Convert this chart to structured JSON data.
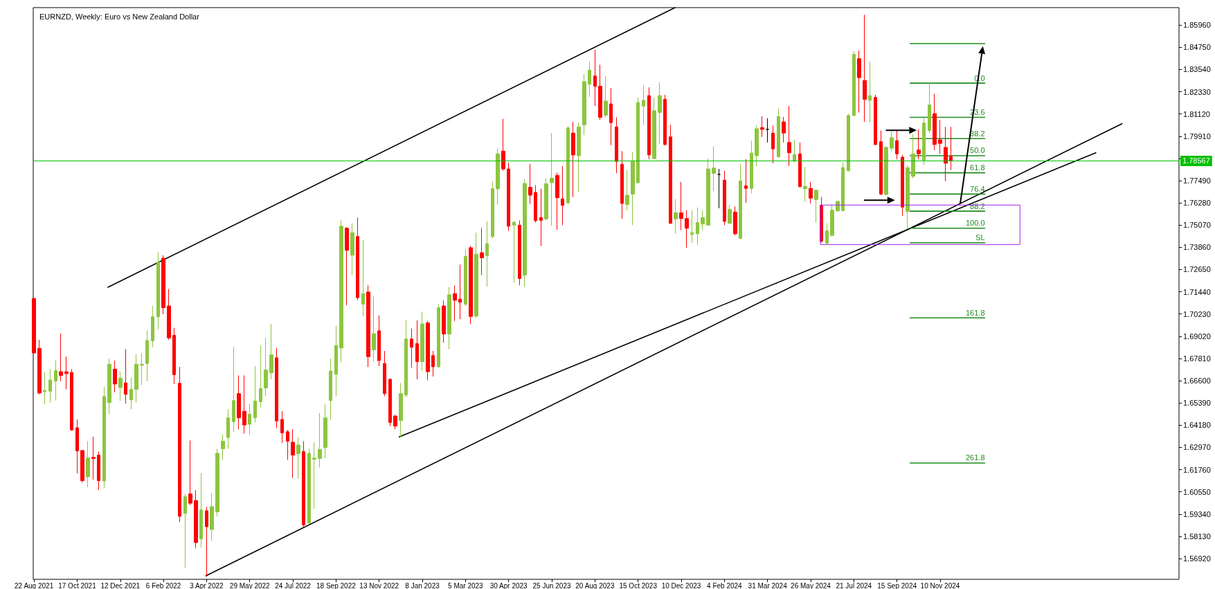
{
  "chart_data": {
    "type": "candlestick",
    "title": "EURNZD, Weekly: Euro vs New Zealand Dollar",
    "marker": "none",
    "line_style": "solid",
    "x": [
      "2021-08-22",
      "2021-08-29",
      "2021-09-05",
      "2021-09-12",
      "2021-09-19",
      "2021-09-26",
      "2021-10-03",
      "2021-10-10",
      "2021-10-17",
      "2021-10-24",
      "2021-10-31",
      "2021-11-07",
      "2021-11-14",
      "2021-11-21",
      "2021-11-28",
      "2021-12-05",
      "2021-12-12",
      "2021-12-19",
      "2021-12-26",
      "2022-01-02",
      "2022-01-09",
      "2022-01-16",
      "2022-01-23",
      "2022-01-30",
      "2022-02-06",
      "2022-02-13",
      "2022-02-20",
      "2022-02-27",
      "2022-03-06",
      "2022-03-13",
      "2022-03-20",
      "2022-03-27",
      "2022-04-03",
      "2022-04-10",
      "2022-04-17",
      "2022-04-24",
      "2022-05-01",
      "2022-05-08",
      "2022-05-15",
      "2022-05-22",
      "2022-05-29",
      "2022-06-05",
      "2022-06-12",
      "2022-06-19",
      "2022-06-26",
      "2022-07-03",
      "2022-07-10",
      "2022-07-17",
      "2022-07-24",
      "2022-07-31",
      "2022-08-07",
      "2022-08-14",
      "2022-08-21",
      "2022-08-28",
      "2022-09-04",
      "2022-09-11",
      "2022-09-18",
      "2022-09-25",
      "2022-10-02",
      "2022-10-09",
      "2022-10-16",
      "2022-10-23",
      "2022-10-30",
      "2022-11-06",
      "2022-11-13",
      "2022-11-20",
      "2022-11-27",
      "2022-12-04",
      "2022-12-11",
      "2022-12-18",
      "2022-12-25",
      "2023-01-01",
      "2023-01-08",
      "2023-01-15",
      "2023-01-22",
      "2023-01-29",
      "2023-02-05",
      "2023-02-12",
      "2023-02-19",
      "2023-02-26",
      "2023-03-05",
      "2023-03-12",
      "2023-03-19",
      "2023-03-26",
      "2023-04-02",
      "2023-04-09",
      "2023-04-16",
      "2023-04-23",
      "2023-04-30",
      "2023-05-07",
      "2023-05-14",
      "2023-05-21",
      "2023-05-28",
      "2023-06-04",
      "2023-06-11",
      "2023-06-18",
      "2023-06-25",
      "2023-07-02",
      "2023-07-09",
      "2023-07-16",
      "2023-07-23",
      "2023-07-30",
      "2023-08-06",
      "2023-08-13",
      "2023-08-20",
      "2023-08-27",
      "2023-09-03",
      "2023-09-10",
      "2023-09-17",
      "2023-09-24",
      "2023-10-01",
      "2023-10-08",
      "2023-10-15",
      "2023-10-22",
      "2023-10-29",
      "2023-11-05",
      "2023-11-12",
      "2023-11-19",
      "2023-11-26",
      "2023-12-03",
      "2023-12-10",
      "2023-12-17",
      "2023-12-24",
      "2023-12-31",
      "2024-01-07",
      "2024-01-14",
      "2024-01-21",
      "2024-01-28",
      "2024-02-04",
      "2024-02-11",
      "2024-02-18",
      "2024-02-25",
      "2024-03-03",
      "2024-03-10",
      "2024-03-17",
      "2024-03-24",
      "2024-03-31",
      "2024-04-07",
      "2024-04-14",
      "2024-04-21",
      "2024-04-28",
      "2024-05-05",
      "2024-05-12",
      "2024-05-19",
      "2024-05-26",
      "2024-06-02",
      "2024-06-09",
      "2024-06-16",
      "2024-06-23",
      "2024-06-30",
      "2024-07-07",
      "2024-07-14",
      "2024-07-21",
      "2024-07-28",
      "2024-08-04",
      "2024-08-11",
      "2024-08-18",
      "2024-08-25",
      "2024-09-01",
      "2024-09-08",
      "2024-09-15",
      "2024-09-22",
      "2024-09-29",
      "2024-10-06",
      "2024-10-13",
      "2024-10-20",
      "2024-10-27",
      "2024-11-03",
      "2024-11-10",
      "2024-11-17",
      "2024-11-24"
    ],
    "ohlc": [
      [
        1.7108,
        1.7112,
        1.6807,
        1.6811
      ],
      [
        1.6836,
        1.6883,
        1.6586,
        1.6593
      ],
      [
        1.6601,
        1.6709,
        1.6531,
        1.6607
      ],
      [
        1.6603,
        1.6723,
        1.6541,
        1.6664
      ],
      [
        1.6658,
        1.677,
        1.6552,
        1.6715
      ],
      [
        1.6709,
        1.6918,
        1.6658,
        1.6689
      ],
      [
        1.6709,
        1.6791,
        1.6613,
        1.6699
      ],
      [
        1.6705,
        1.6723,
        1.6388,
        1.6392
      ],
      [
        1.6404,
        1.6449,
        1.6155,
        1.6278
      ],
      [
        1.628,
        1.6284,
        1.6106,
        1.6116
      ],
      [
        1.6137,
        1.6331,
        1.6081,
        1.6239
      ],
      [
        1.6243,
        1.6355,
        1.6122,
        1.6237
      ],
      [
        1.6255,
        1.6274,
        1.6065,
        1.6116
      ],
      [
        1.6114,
        1.6627,
        1.6075,
        1.6574
      ],
      [
        1.6541,
        1.6781,
        1.6478,
        1.675
      ],
      [
        1.6723,
        1.677,
        1.6597,
        1.6642
      ],
      [
        1.6623,
        1.6709,
        1.655,
        1.6674
      ],
      [
        1.6648,
        1.6832,
        1.6535,
        1.6586
      ],
      [
        1.6556,
        1.6678,
        1.6505,
        1.6613
      ],
      [
        1.6613,
        1.6805,
        1.6541,
        1.675
      ],
      [
        1.6744,
        1.6811,
        1.6638,
        1.675
      ],
      [
        1.6754,
        1.6934,
        1.6658,
        1.6879
      ],
      [
        1.6877,
        1.7067,
        1.6842,
        1.7008
      ],
      [
        1.7008,
        1.7359,
        1.694,
        1.7306
      ],
      [
        1.7327,
        1.7343,
        1.7022,
        1.7057
      ],
      [
        1.7067,
        1.7159,
        1.6883,
        1.6893
      ],
      [
        1.6907,
        1.6948,
        1.6642,
        1.6693
      ],
      [
        1.6646,
        1.6736,
        1.5891,
        1.5922
      ],
      [
        1.5938,
        1.6044,
        1.5642,
        1.6028
      ],
      [
        1.6044,
        1.6335,
        1.5983,
        1.5993
      ],
      [
        1.6008,
        1.6065,
        1.5748,
        1.5779
      ],
      [
        1.5799,
        1.6157,
        1.5752,
        1.5957
      ],
      [
        1.5952,
        1.5973,
        1.5595,
        1.5865
      ],
      [
        1.585,
        1.6049,
        1.5789,
        1.5975
      ],
      [
        1.5946,
        1.629,
        1.5922,
        1.6265
      ],
      [
        1.629,
        1.6368,
        1.6229,
        1.6331
      ],
      [
        1.6351,
        1.6505,
        1.629,
        1.6458
      ],
      [
        1.6437,
        1.6846,
        1.6382,
        1.6552
      ],
      [
        1.659,
        1.6689,
        1.6396,
        1.6458
      ],
      [
        1.6494,
        1.6689,
        1.6372,
        1.6419
      ],
      [
        1.6423,
        1.6535,
        1.6366,
        1.6478
      ],
      [
        1.6458,
        1.674,
        1.6433,
        1.655
      ],
      [
        1.6546,
        1.6852,
        1.6515,
        1.6617
      ],
      [
        1.6621,
        1.6893,
        1.6576,
        1.6719
      ],
      [
        1.6703,
        1.6969,
        1.6668,
        1.6801
      ],
      [
        1.6785,
        1.6838,
        1.6402,
        1.6441
      ],
      [
        1.6449,
        1.6494,
        1.6321,
        1.6376
      ],
      [
        1.6382,
        1.6392,
        1.6229,
        1.6331
      ],
      [
        1.6325,
        1.6396,
        1.613,
        1.6255
      ],
      [
        1.6263,
        1.6351,
        1.6126,
        1.631
      ],
      [
        1.6274,
        1.6331,
        1.586,
        1.5875
      ],
      [
        1.5885,
        1.629,
        1.5881,
        1.6265
      ],
      [
        1.6233,
        1.6325,
        1.5963,
        1.6239
      ],
      [
        1.6237,
        1.6484,
        1.6188,
        1.6286
      ],
      [
        1.6296,
        1.6531,
        1.6239,
        1.6458
      ],
      [
        1.6552,
        1.6781,
        1.6447,
        1.6713
      ],
      [
        1.6695,
        1.6959,
        1.6576,
        1.6852
      ],
      [
        1.6838,
        1.7533,
        1.676,
        1.7501
      ],
      [
        1.749,
        1.7496,
        1.7071,
        1.737
      ],
      [
        1.7343,
        1.7517,
        1.7235,
        1.7466
      ],
      [
        1.7445,
        1.7548,
        1.7098,
        1.7112
      ],
      [
        1.7077,
        1.7425,
        1.701,
        1.7134
      ],
      [
        1.7143,
        1.7179,
        1.6734,
        1.6791
      ],
      [
        1.6828,
        1.7118,
        1.6764,
        1.6916
      ],
      [
        1.6932,
        1.7016,
        1.674,
        1.677
      ],
      [
        1.6754,
        1.6822,
        1.6576,
        1.659
      ],
      [
        1.6668,
        1.6672,
        1.6413,
        1.6433
      ],
      [
        1.6468,
        1.6474,
        1.6396,
        1.6413
      ],
      [
        1.6443,
        1.6648,
        1.6351,
        1.659
      ],
      [
        1.6582,
        1.6989,
        1.657,
        1.6887
      ],
      [
        1.6887,
        1.6944,
        1.673,
        1.6842
      ],
      [
        1.6862,
        1.6989,
        1.6668,
        1.6764
      ],
      [
        1.6764,
        1.7036,
        1.6715,
        1.6969
      ],
      [
        1.6975,
        1.6985,
        1.6662,
        1.6709
      ],
      [
        1.6797,
        1.6822,
        1.6683,
        1.6736
      ],
      [
        1.6736,
        1.7077,
        1.673,
        1.7057
      ],
      [
        1.7067,
        1.7098,
        1.6867,
        1.6914
      ],
      [
        1.6914,
        1.7169,
        1.6832,
        1.7128
      ],
      [
        1.7134,
        1.7179,
        1.6985,
        1.7098
      ],
      [
        1.7104,
        1.7292,
        1.6995,
        1.7087
      ],
      [
        1.7077,
        1.7374,
        1.7067,
        1.7337
      ],
      [
        1.7384,
        1.7394,
        1.6969,
        1.701
      ],
      [
        1.7012,
        1.7466,
        1.7002,
        1.7349
      ],
      [
        1.7357,
        1.7492,
        1.7235,
        1.7329
      ],
      [
        1.7341,
        1.7527,
        1.7173,
        1.7406
      ],
      [
        1.7445,
        1.7746,
        1.7435,
        1.7705
      ],
      [
        1.7705,
        1.7926,
        1.7619,
        1.7895
      ],
      [
        1.791,
        1.8085,
        1.7803,
        1.7813
      ],
      [
        1.7813,
        1.7848,
        1.7476,
        1.7501
      ],
      [
        1.7507,
        1.7527,
        1.7194,
        1.7523
      ],
      [
        1.7507,
        1.7533,
        1.7179,
        1.7216
      ],
      [
        1.7235,
        1.7756,
        1.7169,
        1.7734
      ],
      [
        1.7713,
        1.784,
        1.7623,
        1.767
      ],
      [
        1.7685,
        1.7725,
        1.7521,
        1.7531
      ],
      [
        1.7548,
        1.7705,
        1.7394,
        1.7533
      ],
      [
        1.7541,
        1.7762,
        1.7533,
        1.7732
      ],
      [
        1.7738,
        1.8008,
        1.7503,
        1.7762
      ],
      [
        1.7777,
        1.7793,
        1.7482,
        1.7656
      ],
      [
        1.765,
        1.7828,
        1.7507,
        1.7615
      ],
      [
        1.7629,
        1.8045,
        1.7619,
        1.8036
      ],
      [
        1.8008,
        1.8069,
        1.766,
        1.7889
      ],
      [
        1.7885,
        1.8065,
        1.7687,
        1.8042
      ],
      [
        1.8053,
        1.8329,
        1.7997,
        1.8288
      ],
      [
        1.8274,
        1.8396,
        1.8206,
        1.8351
      ],
      [
        1.8319,
        1.8462,
        1.8155,
        1.8263
      ],
      [
        1.8263,
        1.838,
        1.8079,
        1.8094
      ],
      [
        1.8106,
        1.8319,
        1.8094,
        1.8182
      ],
      [
        1.8167,
        1.8253,
        1.7942,
        1.8065
      ],
      [
        1.8042,
        1.8094,
        1.7789,
        1.7854
      ],
      [
        1.7838,
        1.791,
        1.7541,
        1.7625
      ],
      [
        1.7619,
        1.7807,
        1.7588,
        1.767
      ],
      [
        1.7676,
        1.7905,
        1.7507,
        1.7854
      ],
      [
        1.7738,
        1.8202,
        1.7732,
        1.8175
      ],
      [
        1.8155,
        1.8267,
        1.8053,
        1.8186
      ],
      [
        1.8212,
        1.8257,
        1.7865,
        1.7889
      ],
      [
        1.7869,
        1.8202,
        1.7865,
        1.813
      ],
      [
        1.812,
        1.8284,
        1.795,
        1.8212
      ],
      [
        1.8192,
        1.8216,
        1.794,
        1.7946
      ],
      [
        1.7987,
        1.8053,
        1.7513,
        1.7517
      ],
      [
        1.7541,
        1.765,
        1.746,
        1.7574
      ],
      [
        1.7574,
        1.7742,
        1.748,
        1.7543
      ],
      [
        1.7543,
        1.7588,
        1.7384,
        1.749
      ],
      [
        1.7456,
        1.7588,
        1.7409,
        1.7466
      ],
      [
        1.746,
        1.7603,
        1.7398,
        1.7521
      ],
      [
        1.7513,
        1.7588,
        1.748,
        1.7548
      ],
      [
        1.7507,
        1.7869,
        1.7505,
        1.7813
      ],
      [
        1.7789,
        1.7936,
        1.7691,
        1.7818
      ],
      [
        1.7783,
        1.7813,
        1.7599,
        1.7783
      ],
      [
        1.7752,
        1.7803,
        1.7507,
        1.7527
      ],
      [
        1.7517,
        1.7619,
        1.7513,
        1.7593
      ],
      [
        1.7578,
        1.7609,
        1.7451,
        1.746
      ],
      [
        1.7435,
        1.784,
        1.7431,
        1.7748
      ],
      [
        1.7721,
        1.7865,
        1.7629,
        1.7707
      ],
      [
        1.7707,
        1.7967,
        1.768,
        1.7899
      ],
      [
        1.7885,
        1.8049,
        1.7828,
        1.8032
      ],
      [
        1.8038,
        1.81,
        1.7987,
        1.8028
      ],
      [
        1.8028,
        1.8089,
        1.7957,
        1.8028
      ],
      [
        1.8008,
        1.8049,
        1.7844,
        1.7922
      ],
      [
        1.7879,
        1.8141,
        1.7875,
        1.8098
      ],
      [
        1.8069,
        1.8096,
        1.7957,
        1.8008
      ],
      [
        1.7957,
        1.8155,
        1.7828,
        1.7901
      ],
      [
        1.7858,
        1.7971,
        1.7848,
        1.7891
      ],
      [
        1.7895,
        1.7957,
        1.7711,
        1.7717
      ],
      [
        1.7705,
        1.7824,
        1.7636,
        1.7717
      ],
      [
        1.7707,
        1.7742,
        1.7625,
        1.7654
      ],
      [
        1.7646,
        1.7701,
        1.7521,
        1.7697
      ],
      [
        1.7615,
        1.766,
        1.7411,
        1.7419
      ],
      [
        1.7409,
        1.7517,
        1.7404,
        1.7476
      ],
      [
        1.7451,
        1.7619,
        1.7445,
        1.7588
      ],
      [
        1.7584,
        1.764,
        1.7582,
        1.7636
      ],
      [
        1.7586,
        1.7848,
        1.7582,
        1.782
      ],
      [
        1.7803,
        1.8114,
        1.7799,
        1.8104
      ],
      [
        1.8104,
        1.8454,
        1.81,
        1.8437
      ],
      [
        1.8413,
        1.8458,
        1.812,
        1.831
      ],
      [
        1.8294,
        1.8652,
        1.8069,
        1.8192
      ],
      [
        1.8186,
        1.8396,
        1.8065,
        1.8212
      ],
      [
        1.8202,
        1.8216,
        1.7942,
        1.7946
      ],
      [
        1.7961,
        1.8022,
        1.767,
        1.7676
      ],
      [
        1.7674,
        1.7936,
        1.767,
        1.793
      ],
      [
        1.7926,
        1.8018,
        1.791,
        1.7983
      ],
      [
        1.7967,
        1.8024,
        1.7865,
        1.7895
      ],
      [
        1.7877,
        1.7889,
        1.7558,
        1.7605
      ],
      [
        1.7582,
        1.7834,
        1.7486,
        1.782
      ],
      [
        1.7773,
        1.8002,
        1.7762,
        1.7895
      ],
      [
        1.7916,
        1.8028,
        1.7865,
        1.7895
      ],
      [
        1.7861,
        1.8089,
        1.7834,
        1.8063
      ],
      [
        1.8022,
        1.828,
        1.8008,
        1.8161
      ],
      [
        1.8114,
        1.8222,
        1.7916,
        1.7946
      ],
      [
        1.7971,
        1.8079,
        1.7895,
        1.7952
      ],
      [
        1.793,
        1.8042,
        1.7746,
        1.7844
      ],
      [
        1.7881,
        1.8042,
        1.7807,
        1.7857
      ]
    ],
    "colors": [
      "#ff0000",
      "#ff0000",
      "#8cc63f",
      "#8cc63f",
      "#8cc63f",
      "#ff0000",
      "#ff0000",
      "#ff0000",
      "#ff0000",
      "#ff0000",
      "#8cc63f",
      "#ff0000",
      "#ff0000",
      "#8cc63f",
      "#8cc63f",
      "#ff0000",
      "#8cc63f",
      "#ff0000",
      "#8cc63f",
      "#8cc63f",
      "#8cc63f",
      "#8cc63f",
      "#8cc63f",
      "#8cc63f",
      "#ff0000",
      "#ff0000",
      "#ff0000",
      "#ff0000",
      "#8cc63f",
      "#ff0000",
      "#ff0000",
      "#8cc63f",
      "#ff0000",
      "#8cc63f",
      "#8cc63f",
      "#8cc63f",
      "#8cc63f",
      "#8cc63f",
      "#ff0000",
      "#ff0000",
      "#8cc63f",
      "#8cc63f",
      "#8cc63f",
      "#8cc63f",
      "#8cc63f",
      "#ff0000",
      "#ff0000",
      "#ff0000",
      "#ff0000",
      "#8cc63f",
      "#ff0000",
      "#8cc63f",
      "#8cc63f",
      "#8cc63f",
      "#8cc63f",
      "#8cc63f",
      "#8cc63f",
      "#8cc63f",
      "#ff0000",
      "#8cc63f",
      "#ff0000",
      "#8cc63f",
      "#ff0000",
      "#8cc63f",
      "#ff0000",
      "#ff0000",
      "#ff0000",
      "#ff0000",
      "#8cc63f",
      "#8cc63f",
      "#ff0000",
      "#ff0000",
      "#8cc63f",
      "#ff0000",
      "#ff0000",
      "#8cc63f",
      "#ff0000",
      "#8cc63f",
      "#ff0000",
      "#ff0000",
      "#8cc63f",
      "#ff0000",
      "#8cc63f",
      "#ff0000",
      "#8cc63f",
      "#8cc63f",
      "#8cc63f",
      "#ff0000",
      "#ff0000",
      "#8cc63f",
      "#ff0000",
      "#8cc63f",
      "#ff0000",
      "#ff0000",
      "#ff0000",
      "#8cc63f",
      "#8cc63f",
      "#ff0000",
      "#ff0000",
      "#8cc63f",
      "#ff0000",
      "#8cc63f",
      "#8cc63f",
      "#8cc63f",
      "#ff0000",
      "#ff0000",
      "#8cc63f",
      "#ff0000",
      "#ff0000",
      "#ff0000",
      "#8cc63f",
      "#8cc63f",
      "#8cc63f",
      "#8cc63f",
      "#ff0000",
      "#8cc63f",
      "#8cc63f",
      "#ff0000",
      "#ff0000",
      "#8cc63f",
      "#ff0000",
      "#ff0000",
      "#8cc63f",
      "#8cc63f",
      "#8cc63f",
      "#8cc63f",
      "#8cc63f",
      "#000000",
      "#ff0000",
      "#8cc63f",
      "#ff0000",
      "#8cc63f",
      "#ff0000",
      "#8cc63f",
      "#8cc63f",
      "#ff0000",
      "#000000",
      "#ff0000",
      "#8cc63f",
      "#ff0000",
      "#ff0000",
      "#8cc63f",
      "#ff0000",
      "#8cc63f",
      "#ff0000",
      "#8cc63f",
      "#ff0000",
      "#8cc63f",
      "#8cc63f",
      "#8cc63f",
      "#8cc63f",
      "#8cc63f",
      "#8cc63f",
      "#ff0000",
      "#ff0000",
      "#8cc63f",
      "#ff0000",
      "#ff0000",
      "#8cc63f",
      "#8cc63f",
      "#ff0000",
      "#ff0000",
      "#8cc63f",
      "#8cc63f",
      "#ff0000",
      "#8cc63f",
      "#8cc63f",
      "#ff0000",
      "#ff0000",
      "#ff0000",
      "#ff0000"
    ],
    "xlim": [
      "2021-08-21",
      "2025-09-16"
    ],
    "xticks": [
      {
        "value": "2021-08-22",
        "label": "22 Aug 2021"
      },
      {
        "value": "2021-10-17",
        "label": "17 Oct 2021"
      },
      {
        "value": "2021-12-12",
        "label": "12 Dec 2021"
      },
      {
        "value": "2022-02-06",
        "label": "6 Feb 2022"
      },
      {
        "value": "2022-04-03",
        "label": "3 Apr 2022"
      },
      {
        "value": "2022-05-29",
        "label": "29 May 2022"
      },
      {
        "value": "2022-07-24",
        "label": "24 Jul 2022"
      },
      {
        "value": "2022-09-18",
        "label": "18 Sep 2022"
      },
      {
        "value": "2022-11-13",
        "label": "13 Nov 2022"
      },
      {
        "value": "2023-01-08",
        "label": "8 Jan 2023"
      },
      {
        "value": "2023-03-05",
        "label": "5 Mar 2023"
      },
      {
        "value": "2023-04-30",
        "label": "30 Apr 2023"
      },
      {
        "value": "2023-06-25",
        "label": "25 Jun 2023"
      },
      {
        "value": "2023-08-20",
        "label": "20 Aug 2023"
      },
      {
        "value": "2023-10-15",
        "label": "15 Oct 2023"
      },
      {
        "value": "2023-12-10",
        "label": "10 Dec 2023"
      },
      {
        "value": "2024-02-04",
        "label": "4 Feb 2024"
      },
      {
        "value": "2024-03-31",
        "label": "31 Mar 2024"
      },
      {
        "value": "2024-05-26",
        "label": "26 May 2024"
      },
      {
        "value": "2024-07-21",
        "label": "21 Jul 2024"
      },
      {
        "value": "2024-09-15",
        "label": "15 Sep 2024"
      },
      {
        "value": "2024-11-10",
        "label": "10 Nov 2024"
      }
    ],
    "ylim": [
      1.5579,
      1.8691
    ],
    "yticks": [
      {
        "value": 1.5692,
        "label": "1.56920"
      },
      {
        "value": 1.5813,
        "label": "1.58130"
      },
      {
        "value": 1.5934,
        "label": "1.59340"
      },
      {
        "value": 1.6055,
        "label": "1.60550"
      },
      {
        "value": 1.6176,
        "label": "1.61760"
      },
      {
        "value": 1.6297,
        "label": "1.62970"
      },
      {
        "value": 1.6418,
        "label": "1.64180"
      },
      {
        "value": 1.6539,
        "label": "1.65390"
      },
      {
        "value": 1.666,
        "label": "1.66600"
      },
      {
        "value": 1.6781,
        "label": "1.67810"
      },
      {
        "value": 1.6902,
        "label": "1.69020"
      },
      {
        "value": 1.7023,
        "label": "1.70230"
      },
      {
        "value": 1.7144,
        "label": "1.71440"
      },
      {
        "value": 1.7265,
        "label": "1.72650"
      },
      {
        "value": 1.7386,
        "label": "1.73860"
      },
      {
        "value": 1.7507,
        "label": "1.75070"
      },
      {
        "value": 1.7628,
        "label": "1.76280"
      },
      {
        "value": 1.7749,
        "label": "1.77490"
      },
      {
        "value": 1.787,
        "label": null
      },
      {
        "value": 1.7991,
        "label": "1.79910"
      },
      {
        "value": 1.8112,
        "label": "1.81120"
      },
      {
        "value": 1.8233,
        "label": "1.82330"
      },
      {
        "value": 1.8354,
        "label": "1.83540"
      },
      {
        "value": 1.8475,
        "label": "1.84750"
      },
      {
        "value": 1.8596,
        "label": "1.85960"
      }
    ],
    "series": [
      {
        "type": "line",
        "color": "#000000",
        "x": [
          "2021-11-26",
          "2023-12-02"
        ],
        "values": [
          1.7169,
          1.8691
        ]
      },
      {
        "type": "line",
        "color": "#000000",
        "x": [
          "2022-04-02",
          "2025-07-04"
        ],
        "values": [
          1.5598,
          1.8059
        ]
      },
      {
        "type": "line",
        "color": "#000000",
        "x": [
          "2022-12-09",
          "2025-05-31"
        ],
        "values": [
          1.6354,
          1.7901
        ]
      },
      {
        "type": "line",
        "color": "#1e8c1e",
        "x": [
          "2024-10-02",
          "2025-01-07"
        ],
        "values": [
          1.8495,
          1.8495
        ]
      },
      {
        "type": "line",
        "name": "0.0",
        "color": "#1e8c1e",
        "x": [
          "2024-10-02",
          "2025-01-07"
        ],
        "values": [
          1.828,
          1.828
        ]
      },
      {
        "type": "line",
        "name": "23.6",
        "color": "#1e8c1e",
        "x": [
          "2024-10-02",
          "2025-01-07"
        ],
        "values": [
          1.8094,
          1.8094
        ]
      },
      {
        "type": "line",
        "name": "38.2",
        "color": "#1e8c1e",
        "x": [
          "2024-10-02",
          "2025-01-07"
        ],
        "values": [
          1.7978,
          1.7978
        ]
      },
      {
        "type": "line",
        "name": "50.0",
        "color": "#1e8c1e",
        "x": [
          "2024-10-02",
          "2025-01-07"
        ],
        "values": [
          1.7885,
          1.7885
        ]
      },
      {
        "type": "line",
        "name": "61.8",
        "color": "#1e8c1e",
        "x": [
          "2024-10-02",
          "2025-01-07"
        ],
        "values": [
          1.7792,
          1.7792
        ]
      },
      {
        "type": "line",
        "name": "76.4",
        "color": "#1e8c1e",
        "x": [
          "2024-10-02",
          "2025-01-07"
        ],
        "values": [
          1.7676,
          1.7676
        ]
      },
      {
        "type": "line",
        "name": "88.2",
        "color": "#1e8c1e",
        "x": [
          "2024-10-02",
          "2025-01-07"
        ],
        "values": [
          1.7583,
          1.7583
        ]
      },
      {
        "type": "line",
        "name": "100.0",
        "color": "#1e8c1e",
        "x": [
          "2024-10-02",
          "2025-01-07"
        ],
        "values": [
          1.749,
          1.749
        ]
      },
      {
        "type": "line",
        "name": "SL",
        "color": "#1e8c1e",
        "x": [
          "2024-10-02",
          "2025-01-07"
        ],
        "values": [
          1.7411,
          1.7411
        ]
      },
      {
        "type": "line",
        "name": "161.8",
        "color": "#1e8c1e",
        "x": [
          "2024-10-02",
          "2025-01-07"
        ],
        "values": [
          1.7002,
          1.7002
        ]
      },
      {
        "type": "line",
        "name": "261.8",
        "color": "#1e8c1e",
        "x": [
          "2024-10-02",
          "2025-01-07"
        ],
        "values": [
          1.6212,
          1.6212
        ]
      }
    ],
    "ref_lines": [
      {
        "axis": "y",
        "value": 1.78567,
        "label": "1.78567",
        "color": "#00c000"
      }
    ]
  }
}
